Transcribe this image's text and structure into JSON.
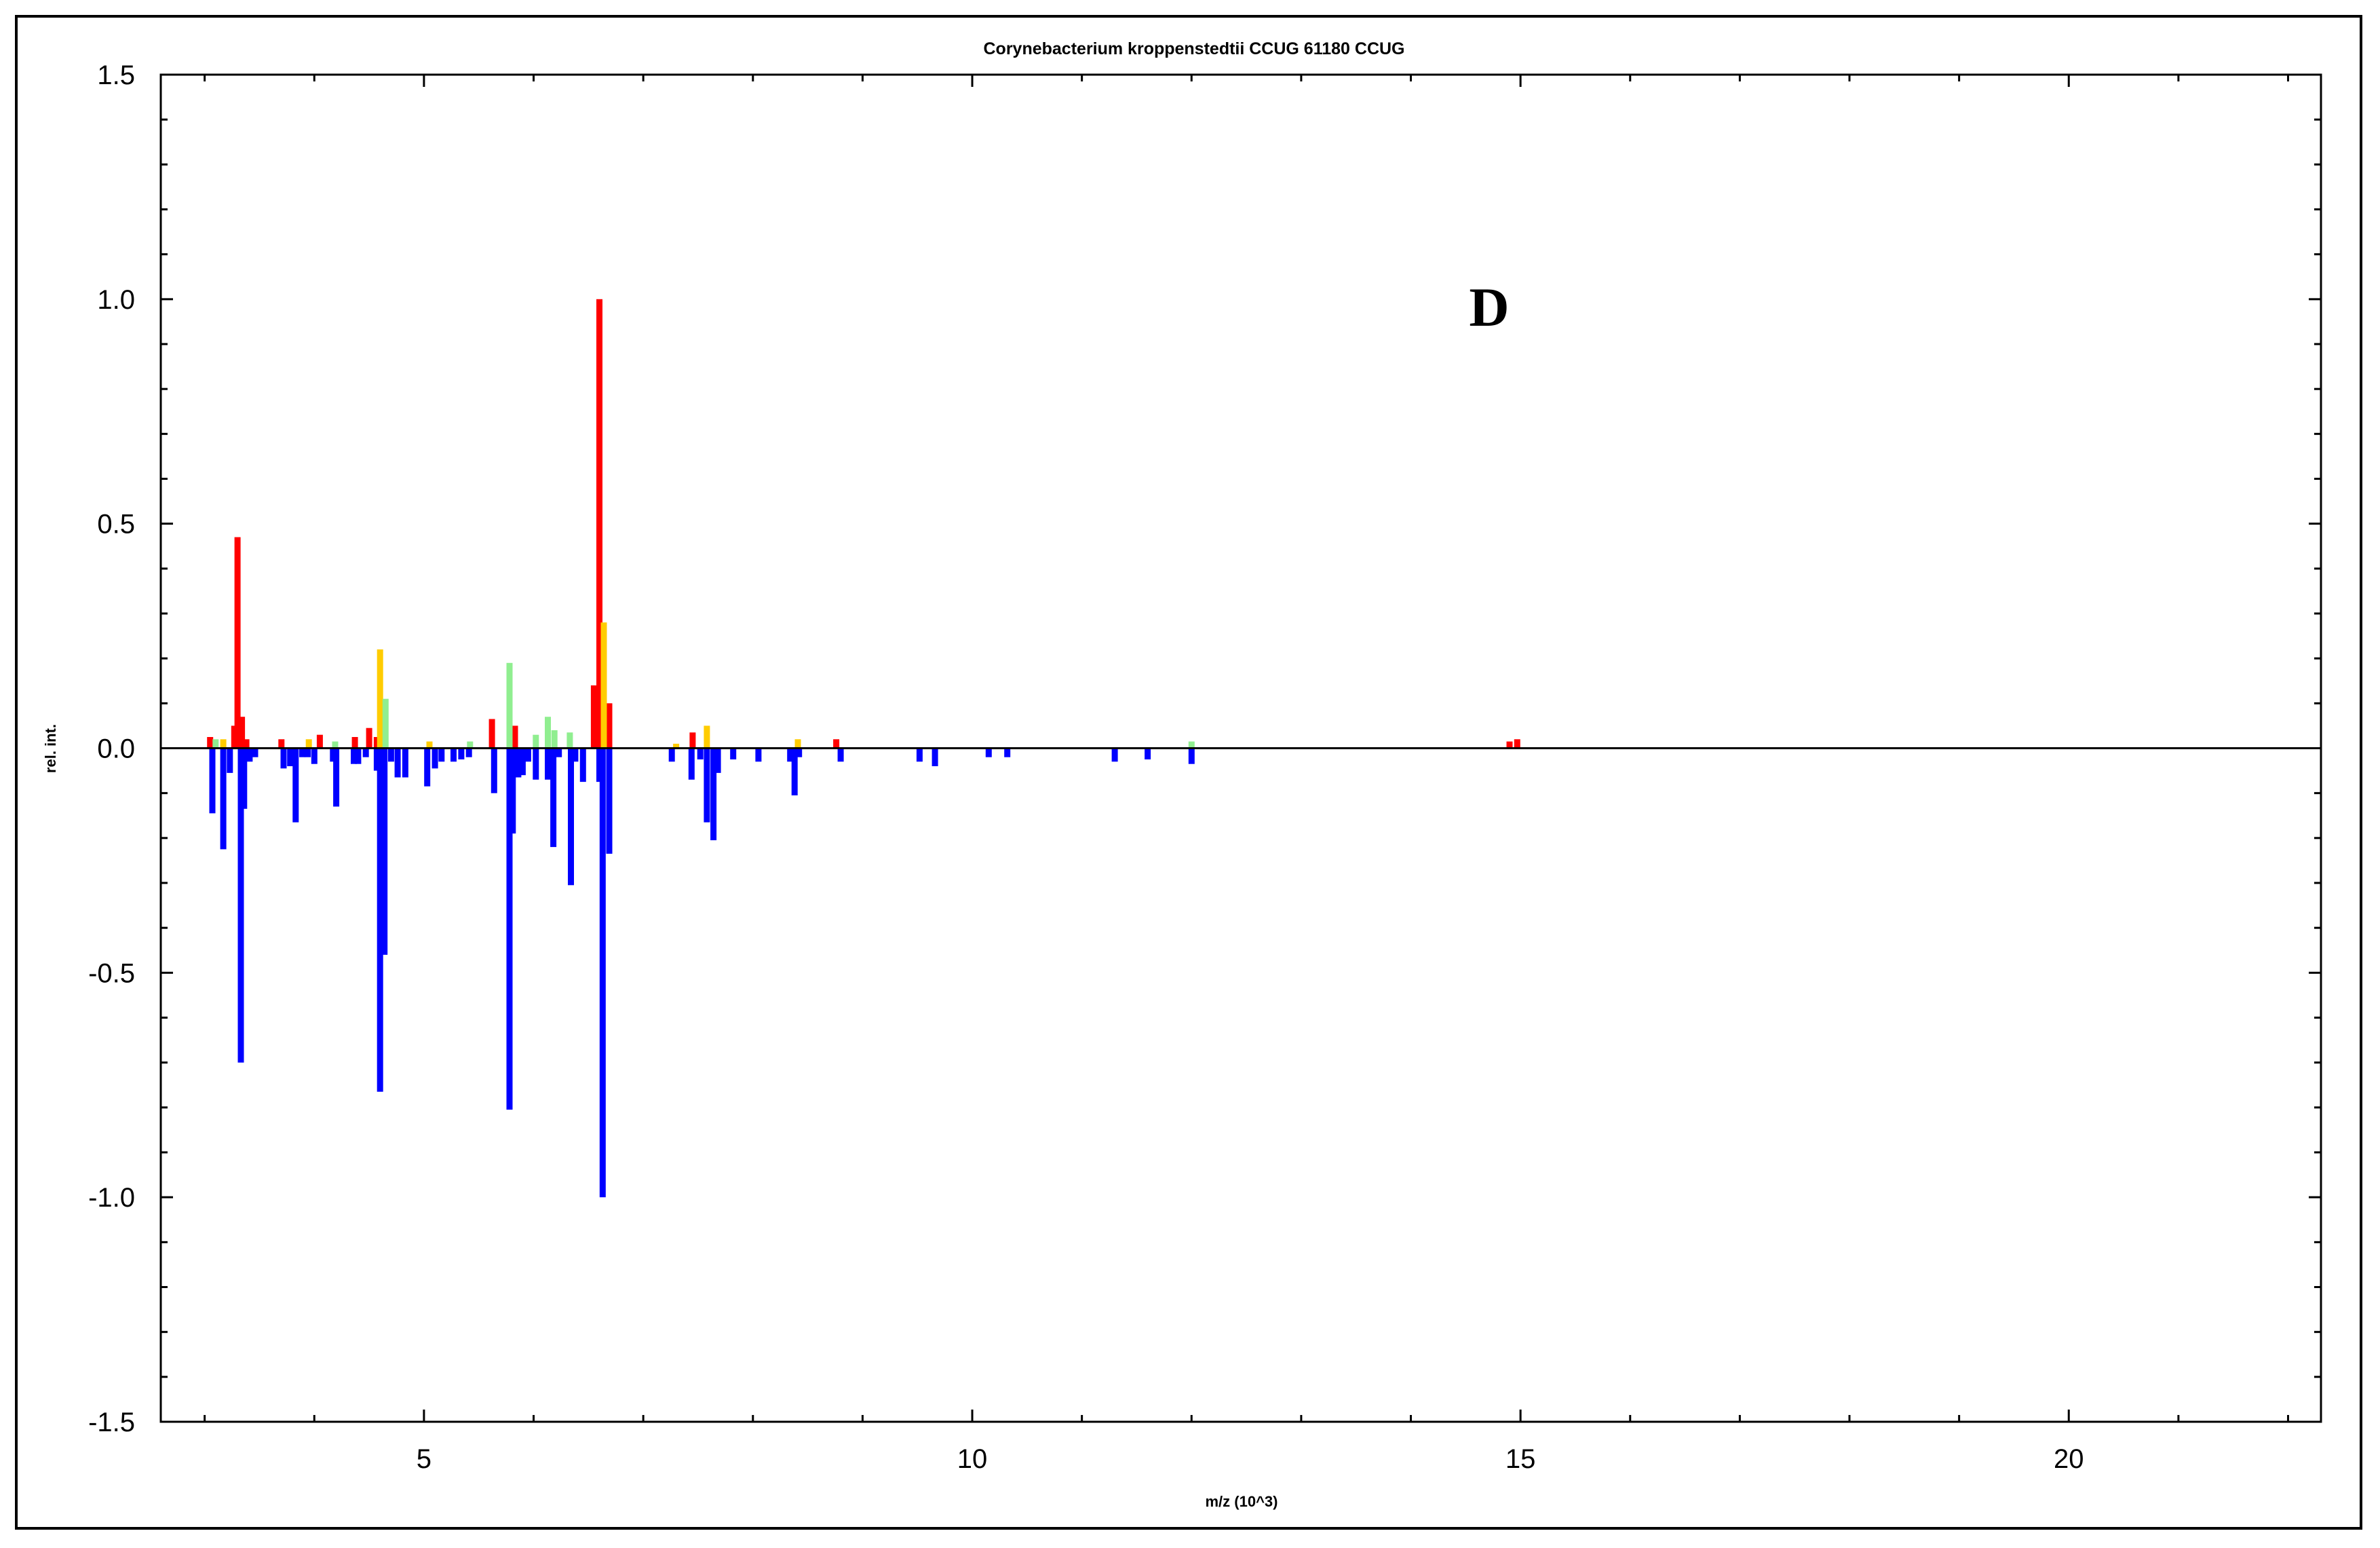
{
  "chart_data": {
    "type": "bar",
    "title": "Corynebacterium kroppenstedtii CCUG 61180 CCUG",
    "xlabel": "m/z (10^3)",
    "ylabel": "rel. int.",
    "xlim": [
      2.6,
      22.3
    ],
    "ylim": [
      -1.5,
      1.5
    ],
    "x_ticks": [
      5,
      10,
      15,
      20
    ],
    "y_ticks": [
      -1.5,
      -1.0,
      -0.5,
      0.0,
      0.5,
      1.0,
      1.5
    ],
    "y_tick_labels": [
      "-1.5",
      "-1.0",
      "-0.5",
      "0.0",
      "0.5",
      "1.0",
      "1.5"
    ],
    "annotation": "D",
    "grid": false,
    "legend": "none",
    "colors": {
      "red": "#ff0000",
      "yellow": "#ffcc00",
      "green": "#90ee90",
      "blue": "#0000ff",
      "axis": "#000000"
    },
    "series": [
      {
        "color": "red",
        "points": [
          {
            "x": 3.05,
            "y": 0.025
          },
          {
            "x": 3.27,
            "y": 0.05
          },
          {
            "x": 3.3,
            "y": 0.47
          },
          {
            "x": 3.34,
            "y": 0.07
          },
          {
            "x": 3.38,
            "y": 0.02
          },
          {
            "x": 3.7,
            "y": 0.02
          },
          {
            "x": 4.05,
            "y": 0.03
          },
          {
            "x": 4.37,
            "y": 0.025
          },
          {
            "x": 4.5,
            "y": 0.045
          },
          {
            "x": 4.57,
            "y": 0.025
          },
          {
            "x": 5.62,
            "y": 0.065
          },
          {
            "x": 5.83,
            "y": 0.05
          },
          {
            "x": 6.55,
            "y": 0.14
          },
          {
            "x": 6.6,
            "y": 1.0
          },
          {
            "x": 6.69,
            "y": 0.1
          },
          {
            "x": 7.45,
            "y": 0.035
          },
          {
            "x": 8.76,
            "y": 0.02
          },
          {
            "x": 14.9,
            "y": 0.015
          },
          {
            "x": 14.97,
            "y": 0.02
          }
        ]
      },
      {
        "color": "yellow",
        "points": [
          {
            "x": 3.17,
            "y": 0.02
          },
          {
            "x": 3.95,
            "y": 0.02
          },
          {
            "x": 4.6,
            "y": 0.22
          },
          {
            "x": 5.05,
            "y": 0.015
          },
          {
            "x": 6.64,
            "y": 0.28
          },
          {
            "x": 7.3,
            "y": 0.01
          },
          {
            "x": 7.58,
            "y": 0.05
          },
          {
            "x": 8.41,
            "y": 0.02
          }
        ]
      },
      {
        "color": "green",
        "points": [
          {
            "x": 3.1,
            "y": 0.02
          },
          {
            "x": 4.19,
            "y": 0.015
          },
          {
            "x": 4.65,
            "y": 0.11
          },
          {
            "x": 5.42,
            "y": 0.015
          },
          {
            "x": 5.78,
            "y": 0.19
          },
          {
            "x": 6.02,
            "y": 0.03
          },
          {
            "x": 6.13,
            "y": 0.07
          },
          {
            "x": 6.19,
            "y": 0.04
          },
          {
            "x": 6.33,
            "y": 0.035
          },
          {
            "x": 12.0,
            "y": 0.015
          }
        ]
      },
      {
        "color": "blue",
        "points": [
          {
            "x": 3.07,
            "y": -0.145
          },
          {
            "x": 3.17,
            "y": -0.225
          },
          {
            "x": 3.23,
            "y": -0.055
          },
          {
            "x": 3.33,
            "y": -0.7
          },
          {
            "x": 3.36,
            "y": -0.135
          },
          {
            "x": 3.41,
            "y": -0.03
          },
          {
            "x": 3.46,
            "y": -0.02
          },
          {
            "x": 3.72,
            "y": -0.045
          },
          {
            "x": 3.78,
            "y": -0.04
          },
          {
            "x": 3.83,
            "y": -0.165
          },
          {
            "x": 3.89,
            "y": -0.02
          },
          {
            "x": 3.94,
            "y": -0.02
          },
          {
            "x": 4.0,
            "y": -0.035
          },
          {
            "x": 4.17,
            "y": -0.03
          },
          {
            "x": 4.2,
            "y": -0.13
          },
          {
            "x": 4.36,
            "y": -0.035
          },
          {
            "x": 4.4,
            "y": -0.035
          },
          {
            "x": 4.47,
            "y": -0.02
          },
          {
            "x": 4.57,
            "y": -0.05
          },
          {
            "x": 4.6,
            "y": -0.765
          },
          {
            "x": 4.64,
            "y": -0.46
          },
          {
            "x": 4.7,
            "y": -0.03
          },
          {
            "x": 4.76,
            "y": -0.065
          },
          {
            "x": 4.83,
            "y": -0.065
          },
          {
            "x": 5.03,
            "y": -0.085
          },
          {
            "x": 5.1,
            "y": -0.045
          },
          {
            "x": 5.16,
            "y": -0.03
          },
          {
            "x": 5.27,
            "y": -0.03
          },
          {
            "x": 5.34,
            "y": -0.025
          },
          {
            "x": 5.41,
            "y": -0.02
          },
          {
            "x": 5.64,
            "y": -0.1
          },
          {
            "x": 5.78,
            "y": -0.805
          },
          {
            "x": 5.81,
            "y": -0.19
          },
          {
            "x": 5.86,
            "y": -0.065
          },
          {
            "x": 5.9,
            "y": -0.06
          },
          {
            "x": 5.95,
            "y": -0.03
          },
          {
            "x": 6.02,
            "y": -0.07
          },
          {
            "x": 6.13,
            "y": -0.07
          },
          {
            "x": 6.18,
            "y": -0.22
          },
          {
            "x": 6.23,
            "y": -0.02
          },
          {
            "x": 6.34,
            "y": -0.305
          },
          {
            "x": 6.38,
            "y": -0.03
          },
          {
            "x": 6.45,
            "y": -0.075
          },
          {
            "x": 6.6,
            "y": -0.075
          },
          {
            "x": 6.63,
            "y": -1.0
          },
          {
            "x": 6.69,
            "y": -0.235
          },
          {
            "x": 7.26,
            "y": -0.03
          },
          {
            "x": 7.44,
            "y": -0.07
          },
          {
            "x": 7.52,
            "y": -0.025
          },
          {
            "x": 7.58,
            "y": -0.165
          },
          {
            "x": 7.64,
            "y": -0.205
          },
          {
            "x": 7.68,
            "y": -0.055
          },
          {
            "x": 7.82,
            "y": -0.025
          },
          {
            "x": 8.05,
            "y": -0.03
          },
          {
            "x": 8.34,
            "y": -0.03
          },
          {
            "x": 8.38,
            "y": -0.105
          },
          {
            "x": 8.42,
            "y": -0.02
          },
          {
            "x": 8.8,
            "y": -0.03
          },
          {
            "x": 9.52,
            "y": -0.03
          },
          {
            "x": 9.66,
            "y": -0.04
          },
          {
            "x": 10.15,
            "y": -0.02
          },
          {
            "x": 10.32,
            "y": -0.02
          },
          {
            "x": 11.3,
            "y": -0.03
          },
          {
            "x": 11.6,
            "y": -0.025
          },
          {
            "x": 12.0,
            "y": -0.035
          }
        ]
      }
    ]
  }
}
